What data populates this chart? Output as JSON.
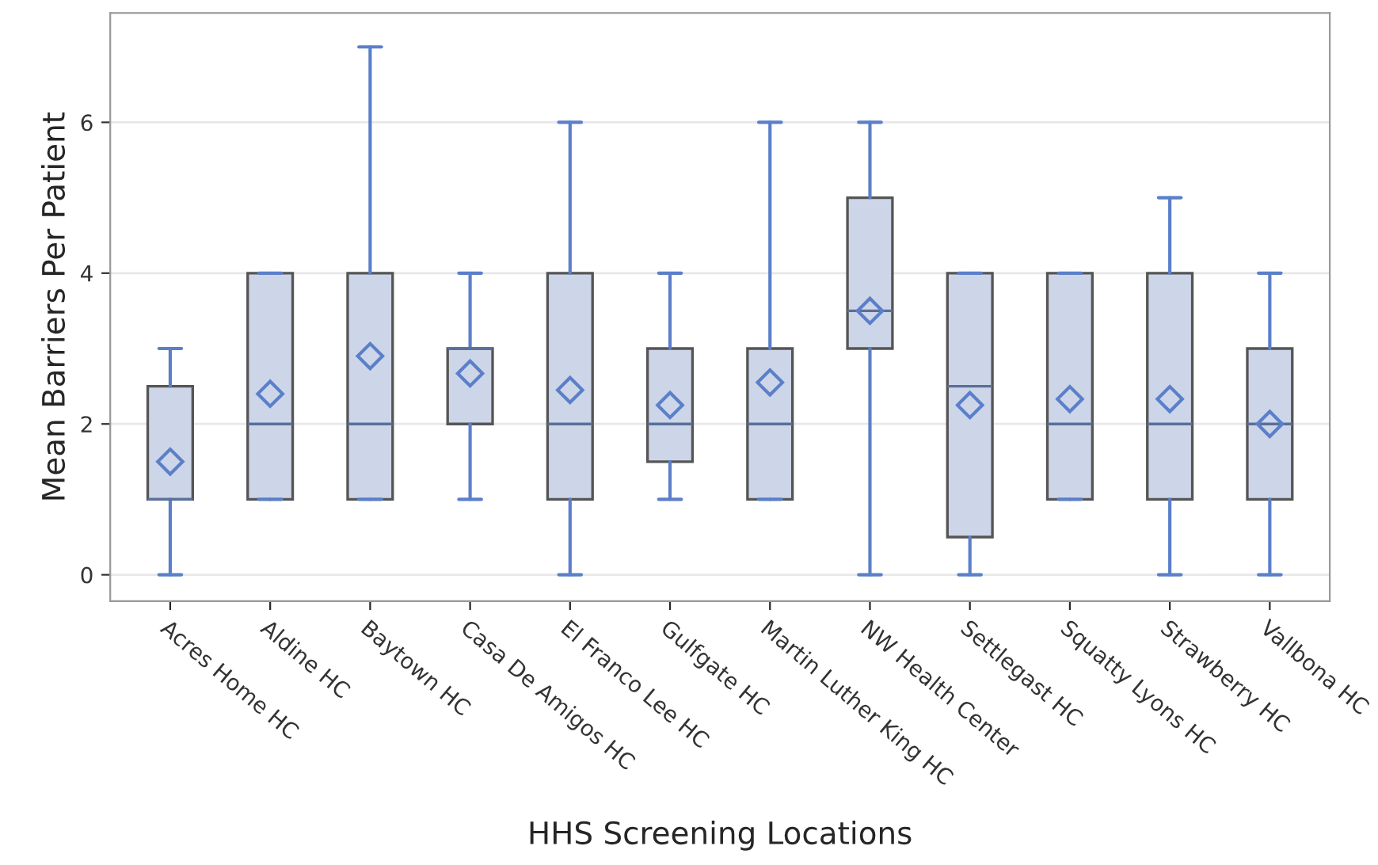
{
  "chart_data": {
    "type": "box",
    "xlabel": "HHS Screening Locations",
    "ylabel": "Mean Barriers Per Patient",
    "categories": [
      "Acres Home HC",
      "Aldine HC",
      "Baytown HC",
      "Casa De Amigos HC",
      "El Franco Lee HC",
      "Gulfgate HC",
      "Martin Luther King HC",
      "NW Health Center",
      "Settlegast HC",
      "Squatty Lyons HC",
      "Strawberry HC",
      "Vallbona HC"
    ],
    "boxes": [
      {
        "low": 0,
        "q1": 1,
        "median": 1,
        "q3": 2.5,
        "high": 3,
        "mean": 1.5
      },
      {
        "low": 1,
        "q1": 1,
        "median": 2,
        "q3": 4,
        "high": 4,
        "mean": 2.4
      },
      {
        "low": 1,
        "q1": 1,
        "median": 2,
        "q3": 4,
        "high": 7,
        "mean": 2.9
      },
      {
        "low": 1,
        "q1": 2,
        "median": 3,
        "q3": 3,
        "high": 4,
        "mean": 2.67
      },
      {
        "low": 0,
        "q1": 1,
        "median": 2,
        "q3": 4,
        "high": 6,
        "mean": 2.45
      },
      {
        "low": 1,
        "q1": 1.5,
        "median": 2,
        "q3": 3,
        "high": 4,
        "mean": 2.25
      },
      {
        "low": 1,
        "q1": 1,
        "median": 2,
        "q3": 3,
        "high": 6,
        "mean": 2.55
      },
      {
        "low": 0,
        "q1": 3,
        "median": 3.5,
        "q3": 5,
        "high": 6,
        "mean": 3.5
      },
      {
        "low": 0,
        "q1": 0.5,
        "median": 2.5,
        "q3": 4,
        "high": 4,
        "mean": 2.25
      },
      {
        "low": 1,
        "q1": 1,
        "median": 2,
        "q3": 4,
        "high": 4,
        "mean": 2.33
      },
      {
        "low": 0,
        "q1": 1,
        "median": 2,
        "q3": 4,
        "high": 5,
        "mean": 2.33
      },
      {
        "low": 0,
        "q1": 1,
        "median": 2,
        "q3": 3,
        "high": 4,
        "mean": 2.0
      }
    ],
    "color": "#cdd6e8",
    "marker": "diamond",
    "ylim": [
      -0.35,
      7.45
    ],
    "yticks": [
      0,
      2,
      4,
      6
    ],
    "grid": "y"
  }
}
